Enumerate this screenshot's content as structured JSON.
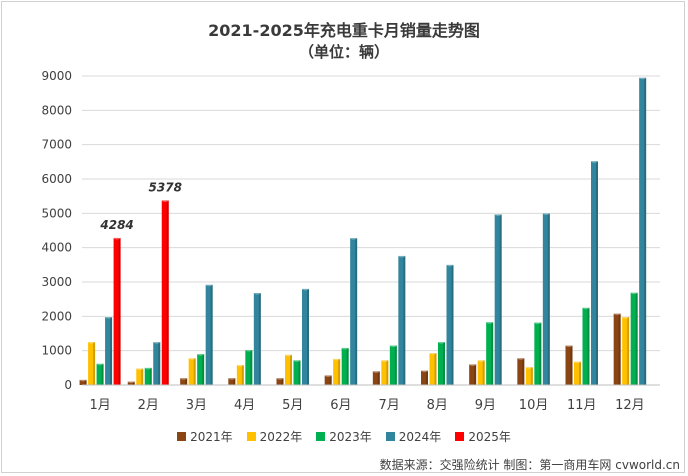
{
  "title": "2021-2025年充电重卡月销量走势图",
  "subtitle": "（单位：辆）",
  "source": "数据来源：交强险统计  制图：第一商用车网 cvworld.cn",
  "chart_data": {
    "type": "bar",
    "categories": [
      "1月",
      "2月",
      "3月",
      "4月",
      "5月",
      "6月",
      "7月",
      "8月",
      "9月",
      "10月",
      "11月",
      "12月"
    ],
    "ylim": [
      0,
      9000
    ],
    "yticks": [
      0,
      1000,
      2000,
      3000,
      4000,
      5000,
      6000,
      7000,
      8000,
      9000
    ],
    "grid": true,
    "legend_position": "bottom",
    "series": [
      {
        "name": "2021年",
        "color": "#8B4513",
        "values": [
          150,
          100,
          200,
          200,
          200,
          280,
          400,
          420,
          600,
          780,
          1150,
          2080
        ]
      },
      {
        "name": "2022年",
        "color": "#FFC000",
        "values": [
          1250,
          480,
          780,
          580,
          880,
          760,
          720,
          930,
          720,
          520,
          680,
          1980
        ]
      },
      {
        "name": "2023年",
        "color": "#00B050",
        "values": [
          620,
          500,
          900,
          1020,
          720,
          1080,
          1150,
          1250,
          1830,
          1820,
          2250,
          2690
        ]
      },
      {
        "name": "2024年",
        "color": "#31859C",
        "values": [
          1980,
          1250,
          2920,
          2680,
          2800,
          4280,
          3760,
          3500,
          4970,
          5000,
          6520,
          8950
        ]
      },
      {
        "name": "2025年",
        "color": "#FF0000",
        "values": [
          4284,
          5378,
          null,
          null,
          null,
          null,
          null,
          null,
          null,
          null,
          null,
          null
        ],
        "labels": [
          "4284",
          "5378"
        ]
      }
    ]
  }
}
